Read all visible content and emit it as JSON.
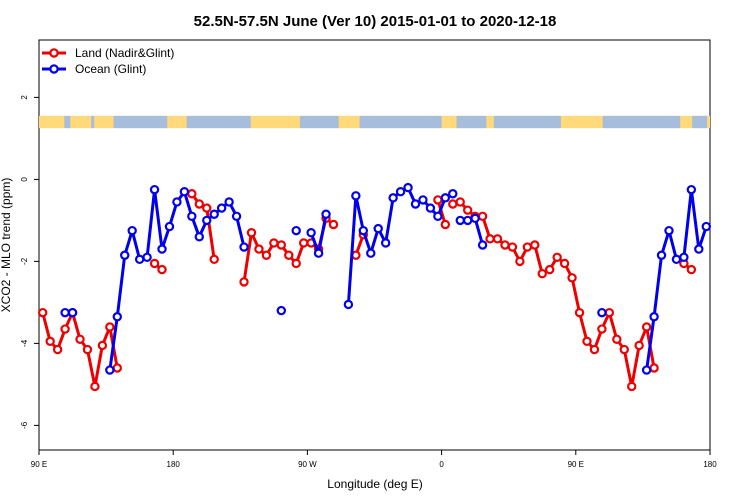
{
  "chart_data": {
    "type": "line",
    "title": "52.5N-57.5N June (Ver 10)   2015-01-01 to 2020-12-18",
    "xlabel": "Longitude (deg E)",
    "ylabel": "XCO2 - MLO trend (ppm)",
    "xlim": [
      90,
      540
    ],
    "ylim": [
      -6.6,
      3.4
    ],
    "x_ticks": [
      {
        "value": 90,
        "label": "90 E"
      },
      {
        "value": 180,
        "label": "180"
      },
      {
        "value": 270,
        "label": "90 W"
      },
      {
        "value": 360,
        "label": "0"
      },
      {
        "value": 450,
        "label": "90 E"
      },
      {
        "value": 540,
        "label": "180"
      }
    ],
    "y_ticks": [
      {
        "value": -6,
        "label": "-6"
      },
      {
        "value": -4,
        "label": "-4"
      },
      {
        "value": -2,
        "label": "-2"
      },
      {
        "value": 0,
        "label": "0"
      },
      {
        "value": 2,
        "label": "2"
      }
    ],
    "legend": {
      "position": "top-left"
    },
    "land_ocean_band": {
      "y_range": [
        1.25,
        1.55
      ],
      "land_color": "#FFD97A",
      "ocean_color": "#A6BDDB"
    },
    "series": [
      {
        "name": "Land (Nadir&Glint)",
        "color": "#EE0000",
        "segments": [
          {
            "x": [
              92.5,
              97.5,
              102.5,
              107.5,
              112.5,
              117.5,
              122.5,
              127.5,
              132.5,
              137.5,
              142.5,
              147.5,
              152.5,
              157.5,
              162.5,
              167.5,
              172.5
            ],
            "y": [
              -3.25,
              -3.95,
              -4.15,
              -3.65,
              -3.25,
              -3.9,
              -4.15,
              -5.05,
              -4.05,
              -3.6,
              -4.6,
              null,
              null,
              null,
              null,
              -2.05,
              -2.2
            ]
          },
          {
            "x": [
              192.5,
              197.5,
              202.5,
              207.5
            ],
            "y": [
              -0.35,
              -0.6,
              -0.7,
              -1.95
            ]
          },
          {
            "x": [
              227.5,
              232.5,
              237.5,
              242.5,
              247.5,
              252.5,
              257.5,
              262.5,
              267.5,
              272.5,
              277.5,
              282.5,
              287.5
            ],
            "y": [
              -2.5,
              -1.3,
              -1.7,
              -1.85,
              -1.55,
              -1.6,
              -1.85,
              -2.05,
              -1.55,
              -1.55,
              -1.7,
              -0.95,
              -1.1
            ]
          },
          {
            "x": [
              302.5,
              307.5
            ],
            "y": [
              -1.85,
              -1.35
            ]
          },
          {
            "x": [
              357.5,
              362.5
            ],
            "y": [
              -0.5,
              -1.1
            ]
          },
          {
            "x": [
              367.5,
              372.5,
              377.5,
              382.5,
              387.5,
              392.5,
              397.5,
              402.5,
              407.5,
              412.5,
              417.5,
              422.5,
              427.5,
              432.5,
              437.5,
              442.5,
              447.5,
              452.5,
              457.5,
              462.5,
              467.5,
              472.5,
              477.5,
              482.5,
              487.5,
              492.5,
              497.5,
              502.5,
              507.5,
              512.5
            ],
            "y": [
              -0.6,
              -0.55,
              -0.75,
              -0.9,
              -0.9,
              -1.45,
              -1.45,
              -1.6,
              -1.65,
              -2.0,
              -1.65,
              -1.6,
              -2.3,
              -2.2,
              -1.9,
              -2.05,
              -2.4,
              -3.25,
              -3.95,
              -4.15,
              -3.65,
              -3.25,
              -3.9,
              -4.15,
              -5.05,
              -4.05,
              -3.6,
              -4.6,
              null,
              null
            ]
          },
          {
            "x": [
              522.5,
              527.5
            ],
            "y": [
              -2.05,
              -2.2
            ]
          }
        ]
      },
      {
        "name": "Ocean (Glint)",
        "color": "#0000EE",
        "segments": [
          {
            "x": [
              107.5,
              112.5
            ],
            "y": [
              -3.25,
              -3.25
            ]
          },
          {
            "x": [
              137.5,
              142.5,
              147.5,
              152.5,
              157.5,
              162.5,
              167.5,
              172.5,
              177.5,
              182.5,
              187.5,
              192.5,
              197.5,
              202.5,
              207.5,
              212.5,
              217.5,
              222.5,
              227.5
            ],
            "y": [
              -4.65,
              -3.35,
              -1.85,
              -1.25,
              -1.95,
              -1.9,
              -0.25,
              -1.7,
              -1.15,
              -0.55,
              -0.3,
              -0.9,
              -1.4,
              -1.0,
              -0.85,
              -0.7,
              -0.55,
              -0.9,
              -1.65
            ]
          },
          {
            "x": [
              252.5
            ],
            "y": [
              -3.2
            ]
          },
          {
            "x": [
              262.5
            ],
            "y": [
              -1.25
            ]
          },
          {
            "x": [
              272.5,
              277.5,
              282.5
            ],
            "y": [
              -1.3,
              -1.8,
              -0.85
            ]
          },
          {
            "x": [
              297.5,
              302.5,
              307.5,
              312.5,
              317.5,
              322.5,
              327.5,
              332.5,
              337.5,
              342.5,
              347.5,
              352.5,
              357.5,
              362.5,
              367.5
            ],
            "y": [
              -3.05,
              -0.4,
              -1.25,
              -1.8,
              -1.2,
              -1.55,
              -0.45,
              -0.3,
              -0.2,
              -0.6,
              -0.5,
              -0.7,
              -0.9,
              -0.45,
              -0.35
            ]
          },
          {
            "x": [
              372.5,
              377.5,
              382.5,
              387.5
            ],
            "y": [
              -1.0,
              -1.0,
              -0.95,
              -1.6
            ]
          },
          {
            "x": [
              467.5
            ],
            "y": [
              -3.25
            ]
          },
          {
            "x": [
              497.5,
              502.5,
              507.5,
              512.5,
              517.5,
              522.5,
              527.5,
              532.5,
              537.5,
              542.5
            ],
            "y": [
              -4.65,
              -3.35,
              -1.85,
              -1.25,
              -1.95,
              -1.9,
              -0.25,
              -1.7,
              -1.15,
              null
            ]
          }
        ]
      }
    ]
  }
}
